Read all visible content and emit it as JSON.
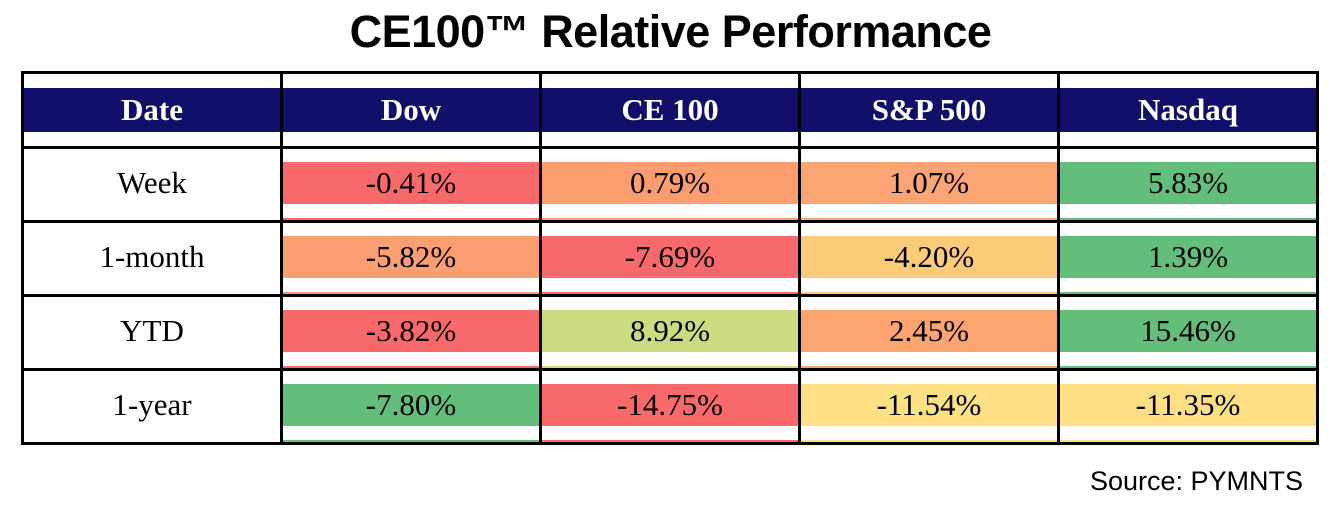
{
  "title": "CE100™ Relative Performance",
  "source_note": "Source: PYMNTS",
  "colors": {
    "header_bg": "#10106A",
    "header_text": "#FFFFFF",
    "border": "#000000",
    "background": "#FFFFFF"
  },
  "table": {
    "columns": [
      "Date",
      "Dow",
      "CE 100",
      "S&P 500",
      "Nasdaq"
    ],
    "rows": [
      {
        "label": "Week",
        "cells": [
          {
            "value": "-0.41%",
            "color": "#F8696B"
          },
          {
            "value": "0.79%",
            "color": "#FB9D6F"
          },
          {
            "value": "1.07%",
            "color": "#FBA575"
          },
          {
            "value": "5.83%",
            "color": "#63BE7B"
          }
        ]
      },
      {
        "label": "1-month",
        "cells": [
          {
            "value": "-5.82%",
            "color": "#FB9F73"
          },
          {
            "value": "-7.69%",
            "color": "#F8696B"
          },
          {
            "value": "-4.20%",
            "color": "#FCCB79"
          },
          {
            "value": "1.39%",
            "color": "#63BE7B"
          }
        ]
      },
      {
        "label": "YTD",
        "cells": [
          {
            "value": "-3.82%",
            "color": "#F8696B"
          },
          {
            "value": "8.92%",
            "color": "#CBDC80"
          },
          {
            "value": "2.45%",
            "color": "#FBA470"
          },
          {
            "value": "15.46%",
            "color": "#63BE7B"
          }
        ]
      },
      {
        "label": "1-year",
        "cells": [
          {
            "value": "-7.80%",
            "color": "#63BE7B"
          },
          {
            "value": "-14.75%",
            "color": "#F8696B"
          },
          {
            "value": "-11.54%",
            "color": "#FDE184"
          },
          {
            "value": "-11.35%",
            "color": "#FCE083"
          }
        ]
      }
    ]
  },
  "chart_data": {
    "type": "table",
    "title": "CE100™ Relative Performance",
    "columns": [
      "Date",
      "Dow",
      "CE 100",
      "S&P 500",
      "Nasdaq"
    ],
    "rows": [
      [
        "Week",
        -0.41,
        0.79,
        1.07,
        5.83
      ],
      [
        "1-month",
        -5.82,
        -7.69,
        -4.2,
        1.39
      ],
      [
        "YTD",
        -3.82,
        8.92,
        2.45,
        15.46
      ],
      [
        "1-year",
        -7.8,
        -14.75,
        -11.54,
        -11.35
      ]
    ],
    "units": "percent",
    "color_scale": "red-yellow-green heatmap applied per row (min=red #F8696B, mid=yellow #FFEB84, max=green #63BE7B)",
    "source": "Source: PYMNTS"
  }
}
